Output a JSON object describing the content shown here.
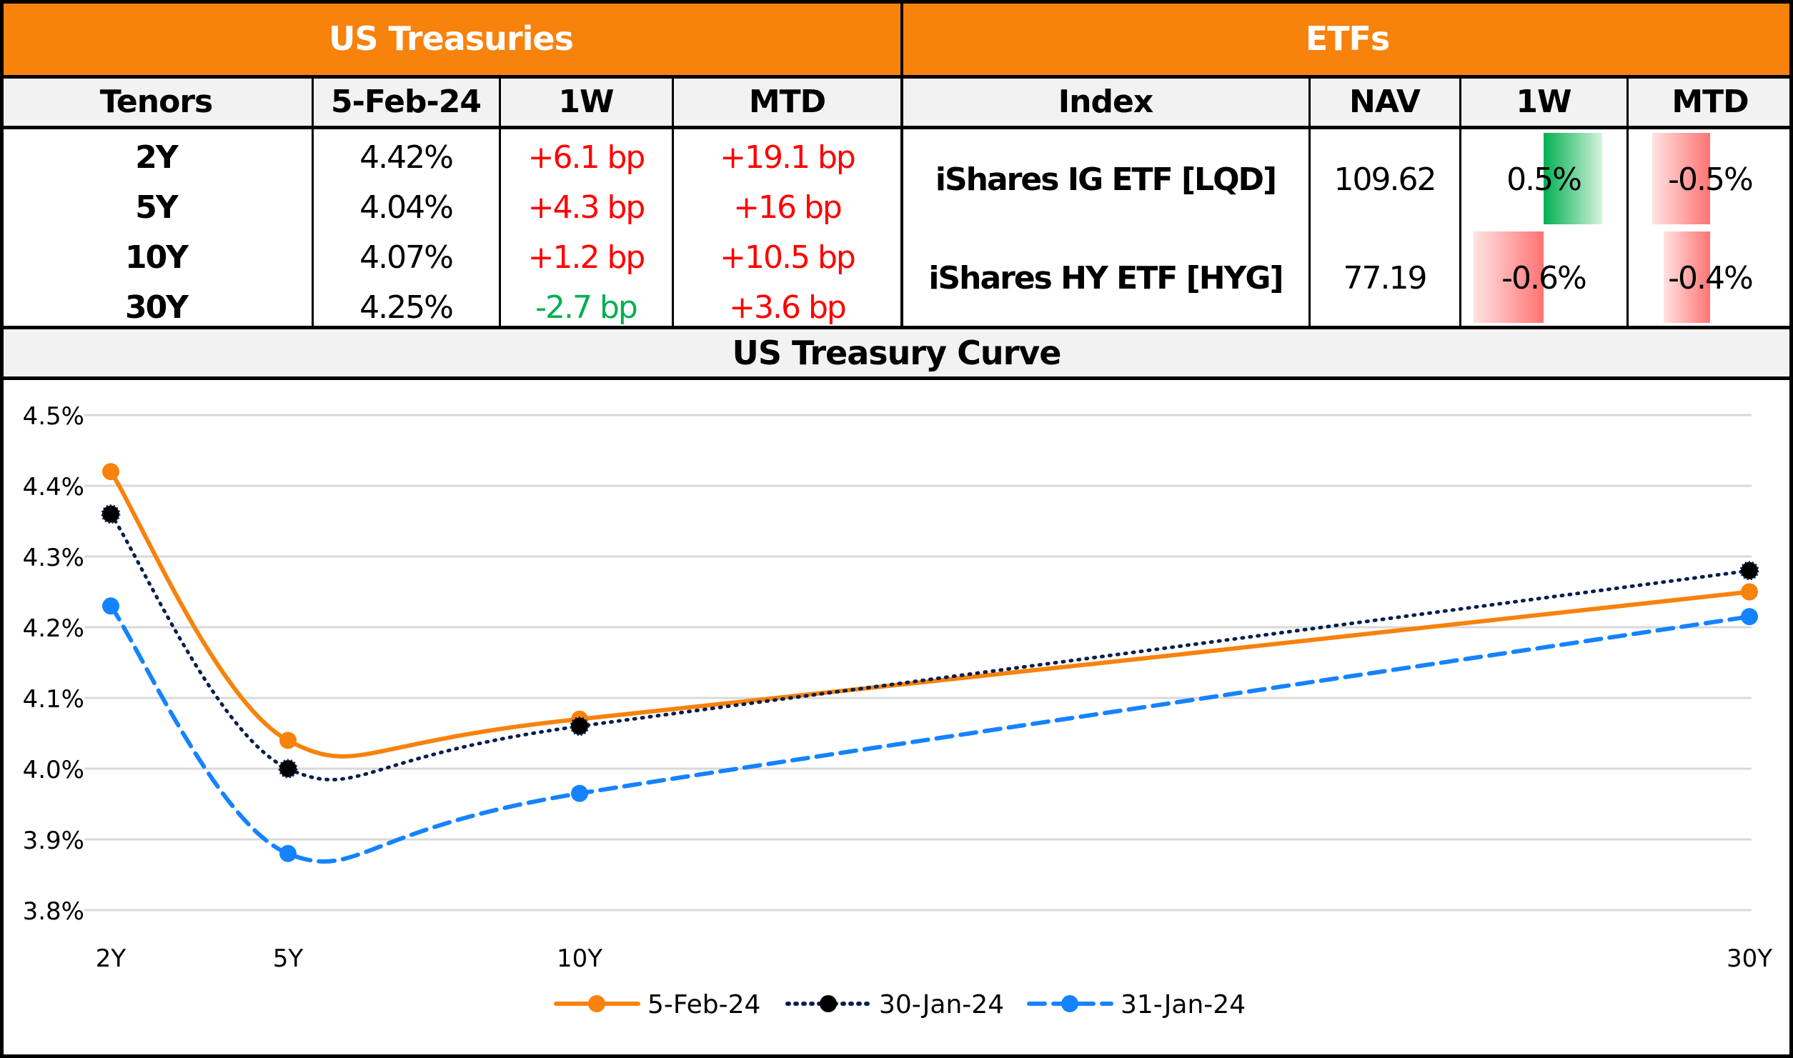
{
  "treasuries": {
    "title": "US Treasuries",
    "headers": [
      "Tenors",
      "5-Feb-24",
      "1W",
      "MTD"
    ],
    "rows": [
      {
        "tenor": "2Y",
        "yield": "4.42%",
        "w1": "+6.1 bp",
        "w1_dir": "up",
        "mtd": "+19.1 bp",
        "mtd_dir": "up"
      },
      {
        "tenor": "5Y",
        "yield": "4.04%",
        "w1": "+4.3 bp",
        "w1_dir": "up",
        "mtd": "+16 bp",
        "mtd_dir": "up"
      },
      {
        "tenor": "10Y",
        "yield": "4.07%",
        "w1": "+1.2 bp",
        "w1_dir": "up",
        "mtd": "+10.5 bp",
        "mtd_dir": "up"
      },
      {
        "tenor": "30Y",
        "yield": "4.25%",
        "w1": "-2.7 bp",
        "w1_dir": "down",
        "mtd": "+3.6 bp",
        "mtd_dir": "up"
      }
    ]
  },
  "etfs": {
    "title": "ETFs",
    "headers": [
      "Index",
      "NAV",
      "1W",
      "MTD"
    ],
    "rows": [
      {
        "index": "iShares IG ETF [LQD]",
        "nav": "109.62",
        "w1": "0.5%",
        "w1_value": 0.5,
        "mtd": "-0.5%",
        "mtd_value": -0.5
      },
      {
        "index": "iShares HY ETF [HYG]",
        "nav": "77.19",
        "w1": "-0.6%",
        "w1_value": -0.6,
        "mtd": "-0.4%",
        "mtd_value": -0.4
      }
    ]
  },
  "colors": {
    "header_orange": "#f7820c",
    "positive_bp": "#ff0000",
    "negative_bp": "#00b050",
    "series_5feb": "#f7820c",
    "series_30jan": "#0a1f4d",
    "series_31jan": "#1583ff"
  },
  "chart_data": {
    "type": "line",
    "title": "US Treasury Curve",
    "xlabel": "",
    "ylabel": "",
    "categories": [
      "2Y",
      "5Y",
      "10Y",
      "30Y"
    ],
    "x": [
      2,
      5,
      10,
      30
    ],
    "ylim": [
      3.8,
      4.5
    ],
    "yticks": [
      "4.5%",
      "4.4%",
      "4.3%",
      "4.2%",
      "4.1%",
      "4.0%",
      "3.9%",
      "3.8%"
    ],
    "ytick_values": [
      4.5,
      4.4,
      4.3,
      4.2,
      4.1,
      4.0,
      3.9,
      3.8
    ],
    "grid": true,
    "legend": "bottom",
    "series": [
      {
        "name": "5-Feb-24",
        "style": "solid",
        "values": [
          4.42,
          4.04,
          4.07,
          4.25
        ]
      },
      {
        "name": "30-Jan-24",
        "style": "dotted",
        "values": [
          4.36,
          4.0,
          4.06,
          4.28
        ]
      },
      {
        "name": "31-Jan-24",
        "style": "dashed",
        "values": [
          4.23,
          3.88,
          3.965,
          4.215
        ]
      }
    ]
  }
}
